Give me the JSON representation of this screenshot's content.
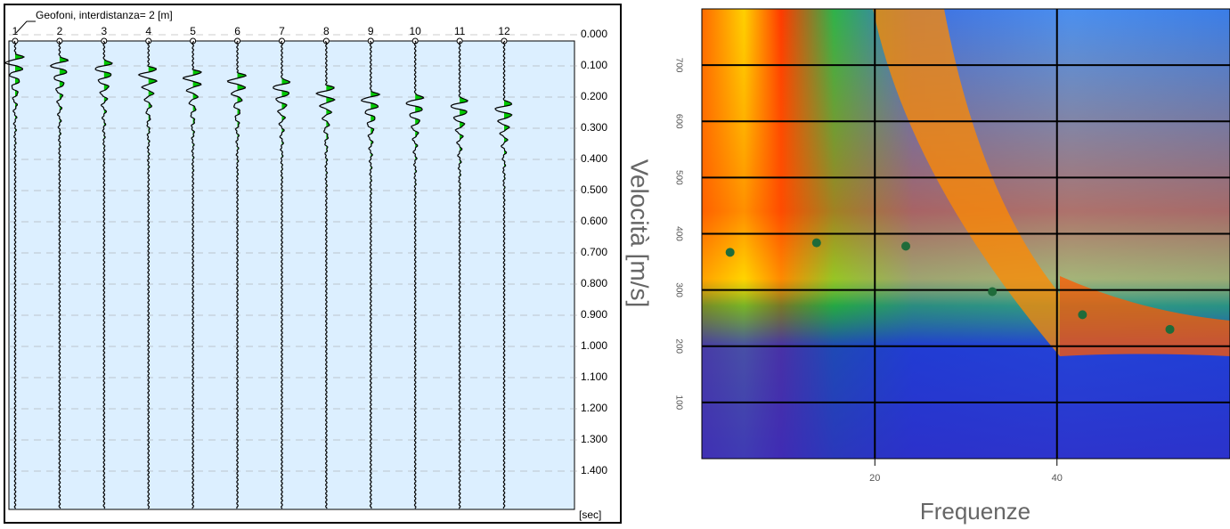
{
  "chart_data": [
    {
      "type": "seismogram",
      "title": "Geofoni, interdistanza= 2 [m]",
      "categories": [
        "1",
        "2",
        "3",
        "4",
        "5",
        "6",
        "7",
        "8",
        "9",
        "10",
        "11",
        "12"
      ],
      "values": [
        0.06,
        0.07,
        0.08,
        0.1,
        0.11,
        0.12,
        0.14,
        0.16,
        0.18,
        0.19,
        0.2,
        0.21
      ],
      "color": "#00c800",
      "y_unit": "[sec]",
      "ylim": [
        0,
        1.52
      ],
      "yticks": [
        {
          "value": 0,
          "label": "0.000"
        },
        {
          "value": 0.1,
          "label": "0.100"
        },
        {
          "value": 0.2,
          "label": "0.200"
        },
        {
          "value": 0.3,
          "label": "0.300"
        },
        {
          "value": 0.4,
          "label": "0.400"
        },
        {
          "value": 0.5,
          "label": "0.500"
        },
        {
          "value": 0.6,
          "label": "0.600"
        },
        {
          "value": 0.7,
          "label": "0.700"
        },
        {
          "value": 0.8,
          "label": "0.800"
        },
        {
          "value": 0.9,
          "label": "0.900"
        },
        {
          "value": 1,
          "label": "1.000"
        },
        {
          "value": 1.1,
          "label": "1.100"
        },
        {
          "value": 1.2,
          "label": "1.200"
        },
        {
          "value": 1.3,
          "label": "1.300"
        },
        {
          "value": 1.4,
          "label": "1.400"
        }
      ],
      "grid": true
    },
    {
      "type": "scatter",
      "ylabel": "Velocità [m/s]",
      "xlabel": "Frequenze",
      "x": [
        4.1,
        13.6,
        23.4,
        32.9,
        42.8,
        52.4
      ],
      "values": [
        367,
        384,
        378,
        297,
        256,
        230
      ],
      "color": "#1f6b3a",
      "xlim": [
        1,
        59
      ],
      "ylim": [
        0,
        800
      ],
      "xticks": [
        20,
        40
      ],
      "yticks": [
        100,
        200,
        300,
        400,
        500,
        600,
        700
      ],
      "grid": true
    }
  ]
}
